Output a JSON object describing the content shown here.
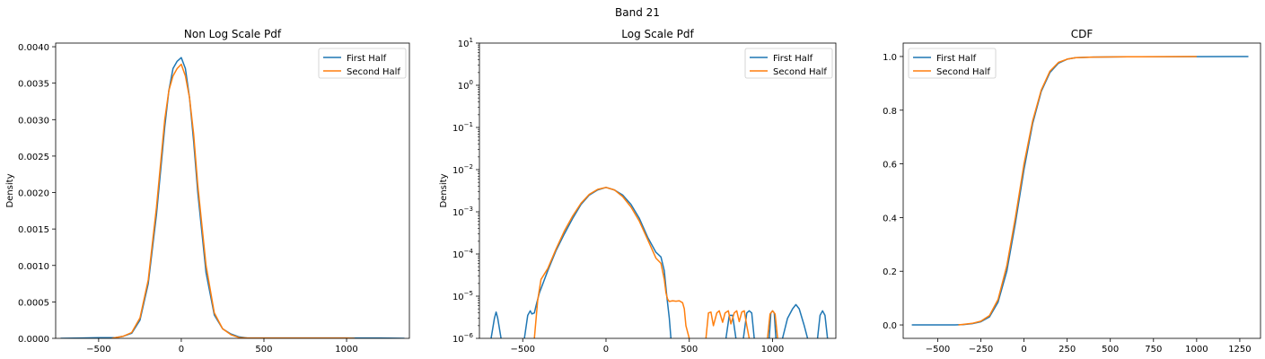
{
  "figure": {
    "suptitle": "Band 21"
  },
  "colors": {
    "first_half": "#1f77b4",
    "second_half": "#ff7f0e"
  },
  "chart_data": [
    {
      "type": "line",
      "title": "Non Log Scale Pdf",
      "xlabel": "",
      "ylabel": "Density",
      "xlim": [
        -760,
        1380
      ],
      "ylim": [
        0,
        0.00405
      ],
      "yscale": "linear",
      "legend_position": "top-right",
      "xticks": [
        -500,
        0,
        500,
        1000
      ],
      "xtick_labels": [
        "−500",
        "0",
        "500",
        "1000"
      ],
      "yticks": [
        0,
        0.0005,
        0.001,
        0.0015,
        0.002,
        0.0025,
        0.003,
        0.0035,
        0.004
      ],
      "ytick_labels": [
        "0.0000",
        "0.0005",
        "0.0010",
        "0.0015",
        "0.0020",
        "0.0025",
        "0.0030",
        "0.0035",
        "0.0040"
      ],
      "series": [
        {
          "name": "First Half",
          "color": "#1f77b4",
          "x": [
            -730,
            -600,
            -500,
            -400,
            -350,
            -300,
            -250,
            -200,
            -150,
            -100,
            -75,
            -50,
            -25,
            0,
            25,
            50,
            75,
            100,
            150,
            200,
            250,
            300,
            350,
            400,
            500,
            700,
            900,
            1000,
            1100,
            1200,
            1350
          ],
          "y": [
            0,
            5e-06,
            1e-05,
            1e-05,
            3e-05,
            7e-05,
            0.00025,
            0.00075,
            0.0017,
            0.0029,
            0.0034,
            0.0037,
            0.0038,
            0.00385,
            0.0037,
            0.0033,
            0.0027,
            0.002,
            0.0009,
            0.00032,
            0.00013,
            6e-05,
            2e-05,
            5e-06,
            5e-06,
            5e-06,
            5e-06,
            5e-06,
            5e-06,
            5e-06,
            0
          ]
        },
        {
          "name": "Second Half",
          "color": "#ff7f0e",
          "x": [
            -420,
            -400,
            -350,
            -300,
            -250,
            -200,
            -150,
            -100,
            -75,
            -50,
            -25,
            0,
            25,
            50,
            75,
            100,
            150,
            200,
            250,
            300,
            350,
            400,
            500,
            650,
            800,
            900,
            1000,
            1050
          ],
          "y": [
            0,
            1e-05,
            3e-05,
            8e-05,
            0.00028,
            0.0008,
            0.0018,
            0.003,
            0.0034,
            0.0036,
            0.0037,
            0.00376,
            0.0036,
            0.0033,
            0.0028,
            0.0021,
            0.001,
            0.00035,
            0.00013,
            5e-05,
            1e-05,
            5e-06,
            5e-06,
            5e-06,
            5e-06,
            5e-06,
            5e-06,
            0
          ]
        }
      ]
    },
    {
      "type": "line",
      "title": "Log Scale Pdf",
      "xlabel": "",
      "ylabel": "Density",
      "xlim": [
        -760,
        1380
      ],
      "ylim": [
        1e-06,
        10
      ],
      "yscale": "log",
      "legend_position": "top-right",
      "xticks": [
        -500,
        0,
        500,
        1000
      ],
      "xtick_labels": [
        "−500",
        "0",
        "500",
        "1000"
      ],
      "yticks": [
        1e-06,
        1e-05,
        0.0001,
        0.001,
        0.01,
        0.1,
        1,
        10
      ],
      "ytick_labels": [
        {
          "base": "10",
          "exp": "−6"
        },
        {
          "base": "10",
          "exp": "−5"
        },
        {
          "base": "10",
          "exp": "−4"
        },
        {
          "base": "10",
          "exp": "−3"
        },
        {
          "base": "10",
          "exp": "−2"
        },
        {
          "base": "10",
          "exp": "−1"
        },
        {
          "base": "10",
          "exp": "0"
        },
        {
          "base": "10",
          "exp": "1"
        }
      ],
      "series": [
        {
          "name": "First Half",
          "color": "#1f77b4",
          "segments": [
            {
              "x": [
                -690,
                -670,
                -660,
                -650,
                -630
              ],
              "y": [
                1e-06,
                3e-06,
                4.2e-06,
                3e-06,
                1e-06
              ]
            },
            {
              "x": [
                -490,
                -470,
                -455,
                -445,
                -430,
                -420,
                -400,
                -350,
                -300,
                -250,
                -200,
                -150,
                -100,
                -50,
                0,
                50,
                100,
                150,
                200,
                250,
                300,
                330,
                350,
                365,
                380,
                390
              ],
              "y": [
                1e-06,
                3.5e-06,
                4.5e-06,
                3.8e-06,
                4e-06,
                6e-06,
                1.2e-05,
                4e-05,
                0.00012,
                0.0003,
                0.0007,
                0.0015,
                0.0025,
                0.0033,
                0.0038,
                0.0033,
                0.0025,
                0.0015,
                0.0007,
                0.00025,
                0.00011,
                8.5e-05,
                4e-05,
                1e-05,
                3e-06,
                1e-06
              ]
            },
            {
              "x": [
                720,
                740,
                760,
                780
              ],
              "y": [
                1e-06,
                3.5e-06,
                3.5e-06,
                1e-06
              ]
            },
            {
              "x": [
                825,
                845,
                860,
                875,
                890
              ],
              "y": [
                1e-06,
                4e-06,
                4.5e-06,
                4e-06,
                1e-06
              ]
            },
            {
              "x": [
                980,
                990,
                1000,
                1010,
                1020
              ],
              "y": [
                1e-06,
                4e-06,
                4.5e-06,
                4e-06,
                1e-06
              ]
            },
            {
              "x": [
                1060,
                1090,
                1120,
                1140,
                1160,
                1190,
                1210
              ],
              "y": [
                1e-06,
                3e-06,
                5e-06,
                6.3e-06,
                5e-06,
                2e-06,
                1e-06
              ]
            },
            {
              "x": [
                1270,
                1285,
                1300,
                1315,
                1330
              ],
              "y": [
                1e-06,
                3.5e-06,
                4.5e-06,
                3.5e-06,
                1e-06
              ]
            }
          ]
        },
        {
          "name": "Second Half",
          "color": "#ff7f0e",
          "segments": [
            {
              "x": [
                -430,
                -410,
                -390,
                -350,
                -300,
                -250,
                -200,
                -150,
                -100,
                -50,
                0,
                50,
                100,
                150,
                200,
                250,
                300,
                330,
                350,
                360,
                370,
                380,
                400,
                420,
                440,
                460,
                470,
                480,
                500
              ],
              "y": [
                1e-06,
                8e-06,
                2.5e-05,
                4.5e-05,
                0.00013,
                0.00035,
                0.0008,
                0.0016,
                0.0026,
                0.0034,
                0.0038,
                0.0033,
                0.0023,
                0.0013,
                0.0006,
                0.00022,
                8e-05,
                6e-05,
                2.5e-05,
                1.2e-05,
                8.5e-06,
                7.5e-06,
                7.8e-06,
                7.6e-06,
                7.8e-06,
                7e-06,
                5e-06,
                2e-06,
                1e-06
              ]
            },
            {
              "x": [
                600,
                615,
                630,
                645,
                665,
                680,
                700,
                715,
                735,
                750,
                770,
                785,
                800,
                815,
                830,
                845,
                860
              ],
              "y": [
                1e-06,
                4e-06,
                4.2e-06,
                2e-06,
                4e-06,
                4.5e-06,
                2.4e-06,
                4e-06,
                4.5e-06,
                2.2e-06,
                4e-06,
                4.5e-06,
                2.5e-06,
                4.2e-06,
                4.5e-06,
                2e-06,
                1e-06
              ]
            },
            {
              "x": [
                970,
                985,
                1000,
                1015,
                1030
              ],
              "y": [
                1e-06,
                3.8e-06,
                4.5e-06,
                3.8e-06,
                1e-06
              ]
            }
          ]
        }
      ]
    },
    {
      "type": "line",
      "title": "CDF",
      "xlabel": "",
      "ylabel": "",
      "xlim": [
        -700,
        1370
      ],
      "ylim": [
        -0.05,
        1.05
      ],
      "yscale": "linear",
      "legend_position": "top-left",
      "xticks": [
        -500,
        -250,
        0,
        250,
        500,
        750,
        1000,
        1250
      ],
      "xtick_labels": [
        "−500",
        "−250",
        "0",
        "250",
        "500",
        "750",
        "1000",
        "1250"
      ],
      "yticks": [
        0,
        0.2,
        0.4,
        0.6,
        0.8,
        1.0
      ],
      "ytick_labels": [
        "0.0",
        "0.2",
        "0.4",
        "0.6",
        "0.8",
        "1.0"
      ],
      "series": [
        {
          "name": "First Half",
          "color": "#1f77b4",
          "x": [
            -650,
            -500,
            -400,
            -350,
            -300,
            -250,
            -200,
            -150,
            -100,
            -50,
            0,
            50,
            100,
            150,
            200,
            250,
            300,
            400,
            600,
            800,
            1000,
            1200,
            1300
          ],
          "y": [
            0,
            0,
            0,
            0.0015,
            0.005,
            0.012,
            0.03,
            0.085,
            0.2,
            0.38,
            0.58,
            0.75,
            0.87,
            0.94,
            0.975,
            0.99,
            0.996,
            0.998,
            0.999,
            0.999,
            0.9995,
            1.0,
            1.0
          ]
        },
        {
          "name": "Second Half",
          "color": "#ff7f0e",
          "x": [
            -380,
            -350,
            -300,
            -250,
            -200,
            -150,
            -100,
            -50,
            0,
            50,
            100,
            150,
            200,
            250,
            300,
            400,
            600,
            800,
            1000
          ],
          "y": [
            0,
            0.002,
            0.006,
            0.014,
            0.035,
            0.095,
            0.22,
            0.4,
            0.6,
            0.76,
            0.875,
            0.945,
            0.978,
            0.99,
            0.996,
            0.998,
            0.999,
            0.9995,
            1.0
          ]
        }
      ]
    }
  ]
}
